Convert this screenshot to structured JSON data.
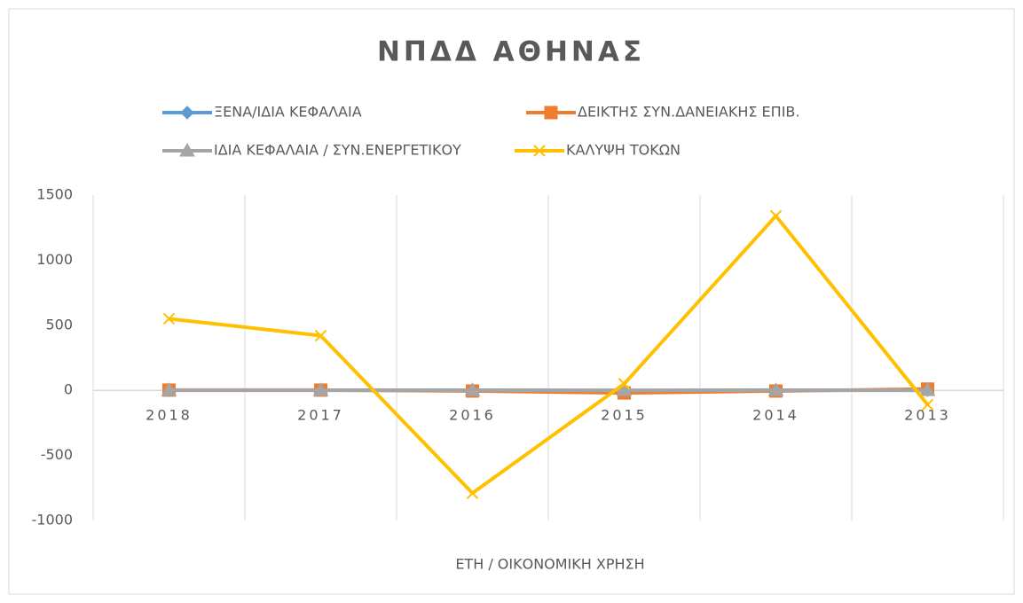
{
  "chart_data": {
    "type": "line",
    "title": "ΝΠΔΔ ΑΘΗΝΑΣ",
    "x_label": "ΕΤΗ / ΟΙΚΟΝΟΜΙΚΗ ΧΡΗΣΗ",
    "categories": [
      "2018",
      "2017",
      "2016",
      "2015",
      "2014",
      "2013"
    ],
    "series": [
      {
        "name": "ΞΕΝΑ/ΙΔΙΑ ΚΕΦΑΛΑΙΑ",
        "color": "#5b9bd5",
        "marker": "diamond",
        "values": [
          1.2,
          1.1,
          1.5,
          -2,
          1.8,
          0.9
        ]
      },
      {
        "name": "ΔΕΙΚΤΗΣ ΣΥΝ.ΔΑΝΕΙΑΚΗΣ ΕΠΙΒ.",
        "color": "#ed7d31",
        "marker": "square",
        "values": [
          2,
          2,
          -5,
          -20,
          -5,
          10
        ]
      },
      {
        "name": "ΙΔΙΑ ΚΕΦΑΛΑΙΑ / ΣΥΝ.ΕΝΕΡΓΕΤΙΚΟΥ",
        "color": "#a5a5a5",
        "marker": "triangle",
        "values": [
          0.4,
          0.4,
          0.3,
          0.2,
          0.3,
          0.4
        ]
      },
      {
        "name": "ΚΑΛΥΨΗ ΤΟΚΩΝ",
        "color": "#ffc000",
        "marker": "x",
        "values": [
          550,
          420,
          -790,
          50,
          1340,
          -110
        ]
      }
    ],
    "ylim": [
      -1000,
      1500
    ],
    "yticks": [
      -1000,
      -500,
      0,
      500,
      1000,
      1500
    ],
    "grid": true,
    "legend": "top"
  }
}
